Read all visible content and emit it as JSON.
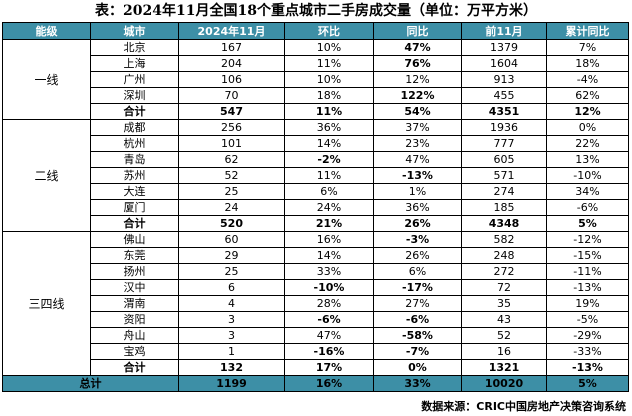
{
  "title": "表：2024年11月全国18个重点城市二手房成交量（单位：万平方米）",
  "headers": [
    "能级",
    "城市",
    "2024年11月",
    "环比",
    "同比",
    "前11月",
    "累计同比"
  ],
  "groups": [
    {
      "tier": "一线",
      "rows": [
        {
          "city": "北京",
          "nov": "167",
          "mom": "10%",
          "yoy": "47%",
          "yoy_color": "red",
          "ytd": "1379",
          "ytd_yoy": "7%"
        },
        {
          "city": "上海",
          "nov": "204",
          "mom": "11%",
          "yoy": "76%",
          "yoy_color": "red",
          "ytd": "1604",
          "ytd_yoy": "18%"
        },
        {
          "city": "广州",
          "nov": "106",
          "mom": "10%",
          "yoy": "12%",
          "ytd": "913",
          "ytd_yoy": "-4%"
        },
        {
          "city": "深圳",
          "nov": "70",
          "mom": "18%",
          "yoy": "122%",
          "yoy_color": "red",
          "ytd": "455",
          "ytd_yoy": "62%"
        }
      ],
      "subtotal": {
        "label": "合计",
        "nov": "547",
        "mom": "11%",
        "yoy": "54%",
        "ytd": "4351",
        "ytd_yoy": "12%"
      }
    },
    {
      "tier": "二线",
      "rows": [
        {
          "city": "成都",
          "nov": "256",
          "mom": "36%",
          "yoy": "37%",
          "ytd": "1936",
          "ytd_yoy": "0%"
        },
        {
          "city": "杭州",
          "nov": "101",
          "mom": "14%",
          "yoy": "23%",
          "ytd": "777",
          "ytd_yoy": "22%"
        },
        {
          "city": "青岛",
          "nov": "62",
          "mom": "-2%",
          "mom_color": "green",
          "yoy": "47%",
          "ytd": "605",
          "ytd_yoy": "13%"
        },
        {
          "city": "苏州",
          "nov": "52",
          "mom": "11%",
          "yoy": "-13%",
          "yoy_color": "green",
          "ytd": "571",
          "ytd_yoy": "-10%"
        },
        {
          "city": "大连",
          "nov": "25",
          "mom": "6%",
          "yoy": "1%",
          "ytd": "274",
          "ytd_yoy": "34%"
        },
        {
          "city": "厦门",
          "nov": "24",
          "mom": "24%",
          "yoy": "36%",
          "ytd": "185",
          "ytd_yoy": "-6%"
        }
      ],
      "subtotal": {
        "label": "合计",
        "nov": "520",
        "mom": "21%",
        "yoy": "26%",
        "ytd": "4348",
        "ytd_yoy": "5%"
      }
    },
    {
      "tier": "三四线",
      "rows": [
        {
          "city": "佛山",
          "nov": "60",
          "mom": "16%",
          "yoy": "-3%",
          "yoy_color": "green",
          "ytd": "582",
          "ytd_yoy": "-12%"
        },
        {
          "city": "东莞",
          "nov": "29",
          "mom": "14%",
          "yoy": "26%",
          "ytd": "248",
          "ytd_yoy": "-15%"
        },
        {
          "city": "扬州",
          "nov": "25",
          "mom": "33%",
          "yoy": "6%",
          "ytd": "272",
          "ytd_yoy": "-11%"
        },
        {
          "city": "汉中",
          "nov": "6",
          "mom": "-10%",
          "mom_color": "green",
          "yoy": "-17%",
          "yoy_color": "green",
          "ytd": "72",
          "ytd_yoy": "-13%"
        },
        {
          "city": "渭南",
          "nov": "4",
          "mom": "28%",
          "yoy": "27%",
          "ytd": "35",
          "ytd_yoy": "19%"
        },
        {
          "city": "资阳",
          "nov": "3",
          "mom": "-6%",
          "mom_color": "green",
          "yoy": "-6%",
          "yoy_color": "green",
          "ytd": "43",
          "ytd_yoy": "-5%"
        },
        {
          "city": "舟山",
          "nov": "3",
          "mom": "47%",
          "yoy": "-58%",
          "yoy_color": "green",
          "ytd": "52",
          "ytd_yoy": "-29%"
        },
        {
          "city": "宝鸡",
          "nov": "1",
          "mom": "-16%",
          "mom_color": "green",
          "yoy": "-7%",
          "yoy_color": "green",
          "ytd": "16",
          "ytd_yoy": "-33%"
        }
      ],
      "subtotal": {
        "label": "合计",
        "nov": "132",
        "mom": "17%",
        "yoy": "0%",
        "ytd": "1321",
        "ytd_yoy": "-13%"
      }
    }
  ],
  "total": {
    "label": "总计",
    "nov": "1199",
    "mom": "16%",
    "yoy": "33%",
    "ytd": "10020",
    "ytd_yoy": "5%"
  },
  "source": "数据来源：CRIC中国房地产决策咨询系统",
  "colors": {
    "header_bg": "#3d8fa6",
    "up": "#ff0000",
    "down": "#00a651"
  }
}
